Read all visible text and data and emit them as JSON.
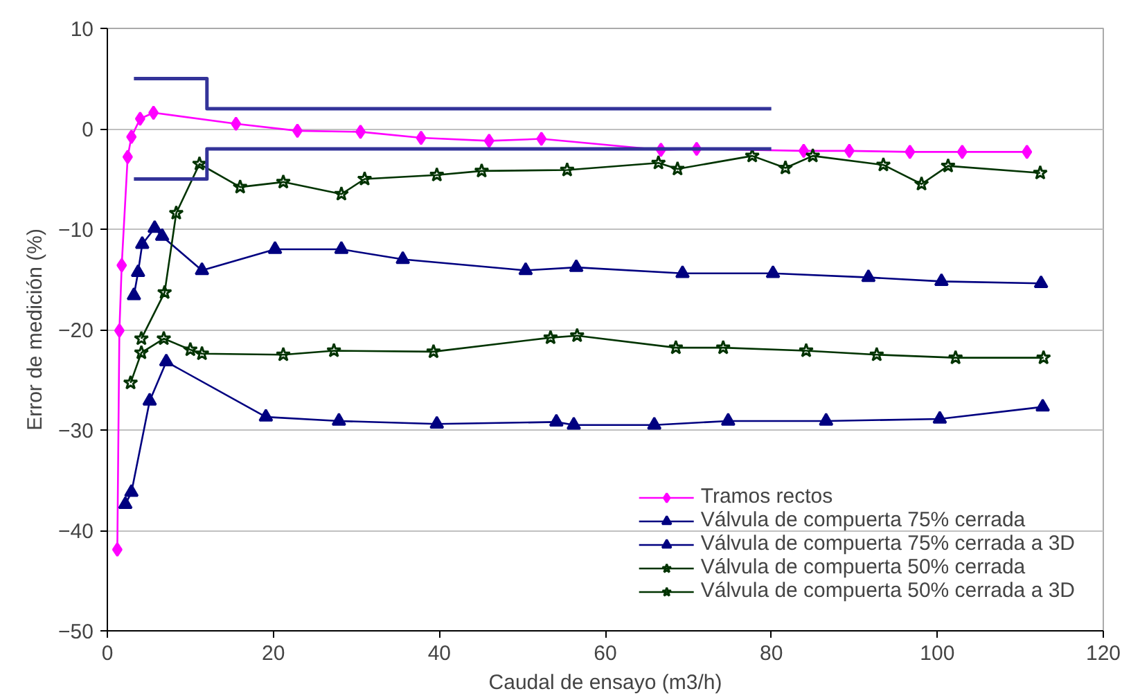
{
  "chart_data": {
    "type": "line",
    "xlabel": "Caudal de ensayo (m3/h)",
    "ylabel": "Error de medición (%)",
    "xlim": [
      0,
      120
    ],
    "xticks": [
      0,
      20,
      40,
      60,
      80,
      100,
      120
    ],
    "ylim": [
      -50,
      10
    ],
    "yticks": [
      -50,
      -40,
      -30,
      -20,
      -10,
      0,
      10
    ],
    "grid": "y",
    "legend": "bottom right",
    "series": [
      {
        "name": "Tramos rectos",
        "color": "#ff00ff",
        "marker": "diamond",
        "x": [
          1.2,
          1.45,
          1.73,
          2.45,
          2.9,
          3.95,
          5.56,
          15.5,
          22.9,
          30.5,
          37.8,
          46,
          52.3,
          66.7,
          71,
          83.9,
          89.4,
          96.7,
          103,
          110.8
        ],
        "values": [
          -41.9,
          -20.1,
          -13.6,
          -2.8,
          -0.8,
          1.0,
          1.6,
          0.5,
          -0.2,
          -0.3,
          -0.9,
          -1.2,
          -1.0,
          -2.1,
          -2.0,
          -2.2,
          -2.2,
          -2.3,
          -2.3,
          -2.3
        ]
      },
      {
        "name": "Válvula de compuerta 75% cerrada",
        "color": "#000080",
        "marker": "triangle",
        "x": [
          3.2,
          3.7,
          4.2,
          5.7,
          6.6,
          11.4,
          20.2,
          28.2,
          35.6,
          50.4,
          56.5,
          69.3,
          80.2,
          91.7,
          100.5,
          112.5
        ],
        "values": [
          -16.6,
          -14.3,
          -11.5,
          -9.9,
          -10.7,
          -14.1,
          -12.0,
          -12.0,
          -13.0,
          -14.1,
          -13.8,
          -14.4,
          -14.4,
          -14.8,
          -15.2,
          -15.4
        ]
      },
      {
        "name": "Válvula de compuerta 75% cerrada a 3D",
        "color": "#000080",
        "marker": "triangle",
        "x": [
          2.17,
          2.9,
          5.1,
          7.1,
          19.1,
          27.9,
          39.7,
          54.1,
          56.2,
          65.9,
          74.8,
          86.6,
          100.3,
          112.7
        ],
        "values": [
          -37.4,
          -36.2,
          -27.1,
          -23.2,
          -28.7,
          -29.1,
          -29.4,
          -29.2,
          -29.5,
          -29.5,
          -29.1,
          -29.1,
          -28.9,
          -27.7
        ]
      },
      {
        "name": "Válvula de compuerta 50% cerrada",
        "color": "#003300",
        "marker": "star",
        "x": [
          4.1,
          6.9,
          8.3,
          11.1,
          16.0,
          21.2,
          28.2,
          31.0,
          39.7,
          45.1,
          55.4,
          66.4,
          68.7,
          77.7,
          81.7,
          85.0,
          93.5,
          98.1,
          101.3,
          112.4
        ],
        "values": [
          -20.9,
          -16.3,
          -8.4,
          -3.5,
          -5.8,
          -5.3,
          -6.5,
          -5.0,
          -4.6,
          -4.2,
          -4.1,
          -3.4,
          -4.0,
          -2.7,
          -3.9,
          -2.7,
          -3.6,
          -5.5,
          -3.7,
          -4.4
        ]
      },
      {
        "name": "Válvula de compuerta 50% cerrada a 3D",
        "color": "#003300",
        "marker": "star",
        "x": [
          2.8,
          4.1,
          6.8,
          10.0,
          11.4,
          21.2,
          27.3,
          39.3,
          53.4,
          56.6,
          68.5,
          74.2,
          84.2,
          92.7,
          102.2,
          112.8
        ],
        "values": [
          -25.3,
          -22.3,
          -20.9,
          -22.0,
          -22.4,
          -22.5,
          -22.1,
          -22.2,
          -20.8,
          -20.6,
          -21.8,
          -21.8,
          -22.1,
          -22.5,
          -22.8,
          -22.8
        ]
      },
      {
        "color": "#333399",
        "marker": "none",
        "x": [
          3.2,
          12,
          12,
          80
        ],
        "values": [
          5,
          5,
          2,
          2
        ]
      },
      {
        "color": "#333399",
        "marker": "none",
        "x": [
          3.2,
          12,
          12,
          80
        ],
        "values": [
          -5,
          -5,
          -2,
          -2
        ]
      }
    ]
  }
}
